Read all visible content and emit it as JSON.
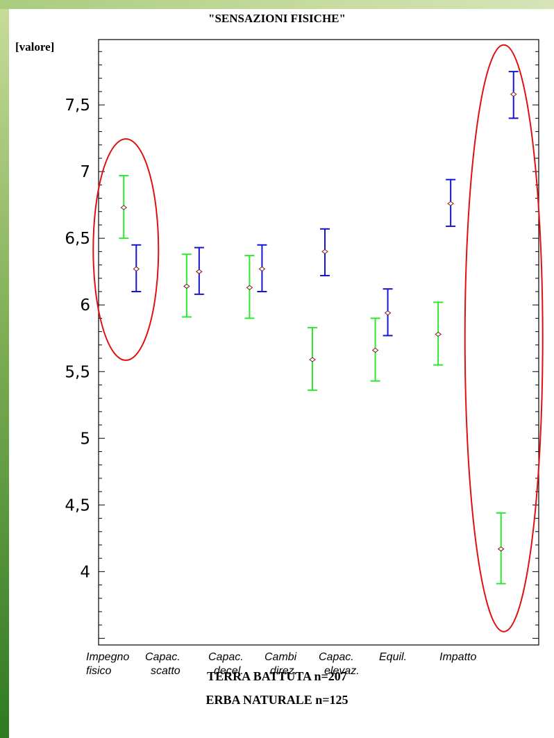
{
  "chart_data": {
    "type": "errorbar",
    "title": "\"SENSAZIONI FISICHE\"",
    "ylabel": "[valore]",
    "ylim": [
      3.45,
      7.99
    ],
    "yticks": [
      "4",
      "4,5",
      "5",
      "5,5",
      "6",
      "6,5",
      "7",
      "7,5"
    ],
    "ytick_values": [
      4,
      4.5,
      5,
      5.5,
      6,
      6.5,
      7,
      7.5
    ],
    "categories": [
      [
        "Impegno",
        "fisico"
      ],
      [
        "Capac.",
        "scatto"
      ],
      [
        "Capac.",
        "decel."
      ],
      [
        "Cambi",
        "direz."
      ],
      [
        "Capac.",
        "elevaz."
      ],
      [
        "Equil.",
        ""
      ],
      [
        "Impatto",
        ""
      ]
    ],
    "series": [
      {
        "name": "ERBA NATURALE   n=125",
        "color": "#2ee62e",
        "mean": [
          6.73,
          6.14,
          6.13,
          5.59,
          5.66,
          5.78,
          4.17
        ],
        "lower": [
          6.5,
          5.91,
          5.9,
          5.36,
          5.43,
          5.55,
          3.91
        ],
        "upper": [
          6.97,
          6.38,
          6.37,
          5.83,
          5.9,
          6.02,
          4.44
        ]
      },
      {
        "name": "TERRA BATTUTA   n=207",
        "color": "#1414d4",
        "mean": [
          6.27,
          6.25,
          6.27,
          6.4,
          5.94,
          6.76,
          7.58
        ],
        "lower": [
          6.1,
          6.08,
          6.1,
          6.22,
          5.77,
          6.59,
          7.4
        ],
        "upper": [
          6.45,
          6.43,
          6.45,
          6.57,
          6.12,
          6.94,
          7.75
        ]
      }
    ],
    "highlight_ellipses_color": "#e01010",
    "highlighted_categories": [
      "Impegno fisico",
      "Impatto"
    ]
  }
}
